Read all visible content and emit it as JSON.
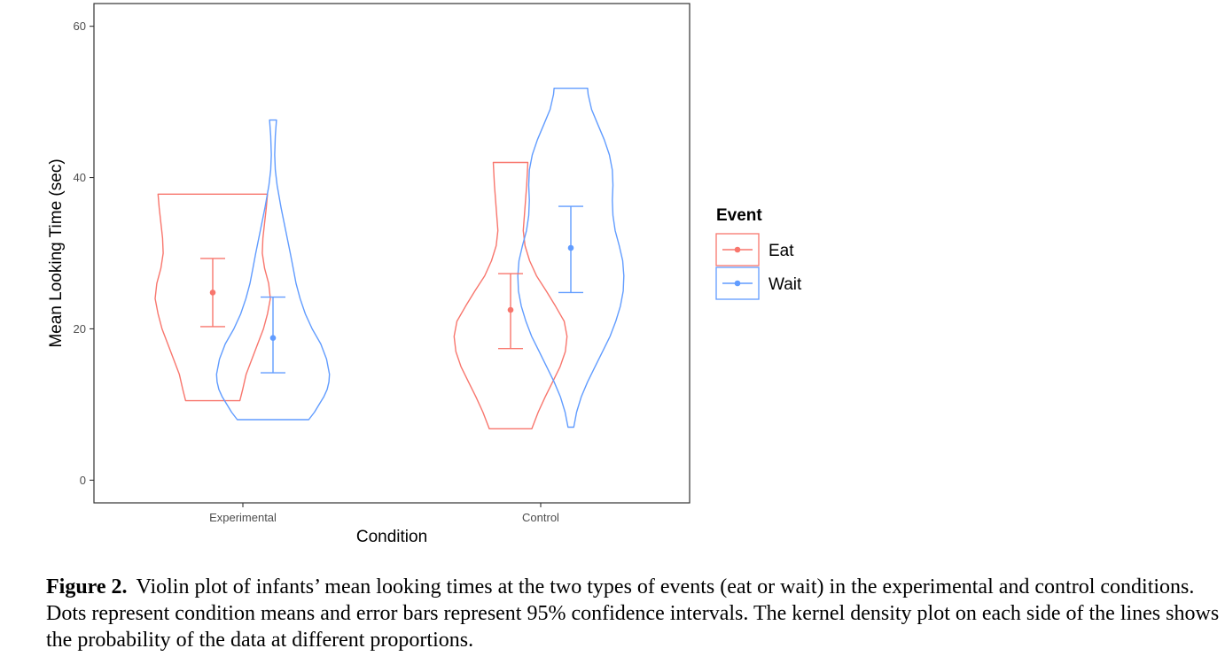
{
  "chart_data": {
    "type": "violin",
    "xlabel": "Condition",
    "ylabel": "Mean Looking Time (sec)",
    "categories": [
      "Experimental",
      "Control"
    ],
    "ylim": [
      -3,
      63
    ],
    "yticks": [
      0,
      20,
      40,
      60
    ],
    "grid": false,
    "legend": {
      "title": "Event",
      "position": "right"
    },
    "series": [
      {
        "name": "Eat",
        "color": "#F8766D",
        "groups": [
          {
            "category": "Experimental",
            "min": 10.5,
            "max": 37.8,
            "mean": 24.8,
            "ci": [
              20.3,
              29.3
            ],
            "density": [
              [
                10.5,
                0.47
              ],
              [
                12,
                0.52
              ],
              [
                14,
                0.58
              ],
              [
                16,
                0.68
              ],
              [
                18,
                0.78
              ],
              [
                20,
                0.88
              ],
              [
                22,
                0.95
              ],
              [
                24,
                1.0
              ],
              [
                26,
                0.97
              ],
              [
                28,
                0.9
              ],
              [
                30,
                0.86
              ],
              [
                32,
                0.87
              ],
              [
                34,
                0.9
              ],
              [
                36,
                0.93
              ],
              [
                37.8,
                0.95
              ]
            ]
          },
          {
            "category": "Control",
            "min": 6.8,
            "max": 42.0,
            "mean": 22.5,
            "ci": [
              17.4,
              27.3
            ],
            "density": [
              [
                6.8,
                0.37
              ],
              [
                9,
                0.48
              ],
              [
                11,
                0.6
              ],
              [
                13,
                0.73
              ],
              [
                15,
                0.86
              ],
              [
                17,
                0.95
              ],
              [
                19,
                0.98
              ],
              [
                21,
                0.93
              ],
              [
                23,
                0.78
              ],
              [
                25,
                0.62
              ],
              [
                27,
                0.45
              ],
              [
                29,
                0.33
              ],
              [
                31,
                0.25
              ],
              [
                33,
                0.22
              ],
              [
                35,
                0.24
              ],
              [
                37,
                0.26
              ],
              [
                39,
                0.28
              ],
              [
                42,
                0.3
              ]
            ]
          }
        ]
      },
      {
        "name": "Wait",
        "color": "#619CFF",
        "groups": [
          {
            "category": "Experimental",
            "min": 8.0,
            "max": 47.6,
            "mean": 18.8,
            "ci": [
              14.2,
              24.2
            ],
            "density": [
              [
                8.0,
                0.62
              ],
              [
                9,
                0.72
              ],
              [
                10,
                0.8
              ],
              [
                11,
                0.88
              ],
              [
                12,
                0.94
              ],
              [
                13,
                0.97
              ],
              [
                14,
                0.98
              ],
              [
                16,
                0.93
              ],
              [
                18,
                0.83
              ],
              [
                20,
                0.68
              ],
              [
                22,
                0.56
              ],
              [
                24,
                0.47
              ],
              [
                26,
                0.4
              ],
              [
                28,
                0.35
              ],
              [
                30,
                0.3
              ],
              [
                33,
                0.22
              ],
              [
                36,
                0.14
              ],
              [
                39,
                0.07
              ],
              [
                41,
                0.04
              ],
              [
                43,
                0.03
              ],
              [
                45.5,
                0.04
              ],
              [
                47.6,
                0.06
              ]
            ]
          },
          {
            "category": "Control",
            "min": 7.0,
            "max": 51.8,
            "mean": 30.7,
            "ci": [
              24.8,
              36.2
            ],
            "density": [
              [
                7.0,
                0.05
              ],
              [
                9,
                0.1
              ],
              [
                11,
                0.18
              ],
              [
                13,
                0.29
              ],
              [
                15,
                0.42
              ],
              [
                17,
                0.55
              ],
              [
                19,
                0.68
              ],
              [
                21,
                0.78
              ],
              [
                23,
                0.86
              ],
              [
                25,
                0.91
              ],
              [
                27,
                0.92
              ],
              [
                29,
                0.9
              ],
              [
                31,
                0.84
              ],
              [
                33,
                0.77
              ],
              [
                35,
                0.73
              ],
              [
                37,
                0.72
              ],
              [
                39,
                0.73
              ],
              [
                41,
                0.72
              ],
              [
                43,
                0.67
              ],
              [
                45,
                0.58
              ],
              [
                47,
                0.47
              ],
              [
                49,
                0.36
              ],
              [
                51,
                0.3
              ],
              [
                51.8,
                0.29
              ]
            ]
          }
        ]
      }
    ]
  },
  "caption": {
    "label": "Figure 2.",
    "text": "Violin plot of infants’ mean looking times at the two types of events (eat or wait) in the experimental and control conditions. Dots represent condition means and error bars represent 95% confidence intervals. The kernel density plot on each side of the lines shows the probability of the data at different proportions."
  }
}
